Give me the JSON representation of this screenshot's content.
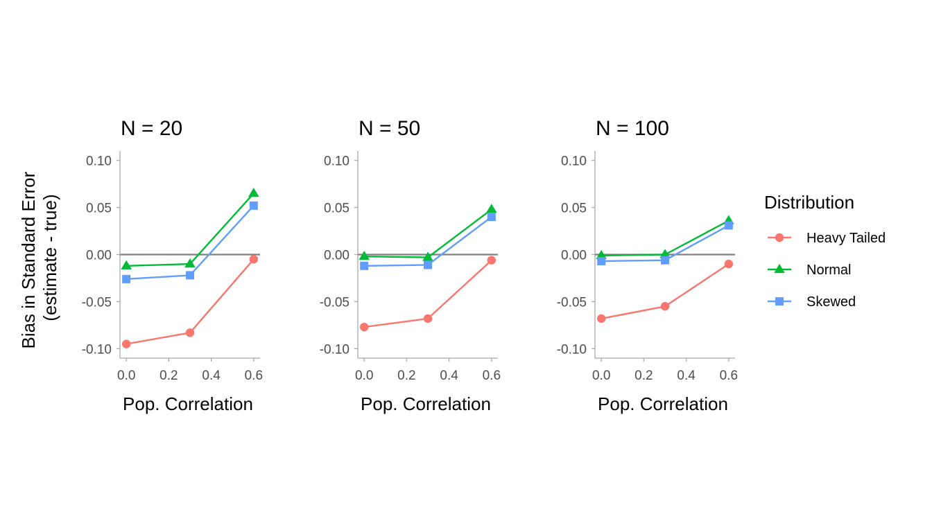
{
  "chart_data": {
    "type": "line",
    "ylabel_lines": [
      "Bias in Standard Error",
      "(estimate - true)"
    ],
    "xlabel": "Pop. Correlation",
    "xlim": [
      -0.03,
      0.63
    ],
    "ylim": [
      -0.11,
      0.11
    ],
    "x_ticks": [
      0.0,
      0.2,
      0.4,
      0.6
    ],
    "x_tick_labels": [
      "0.0",
      "0.2",
      "0.4",
      "0.6"
    ],
    "y_ticks": [
      -0.1,
      -0.05,
      0.0,
      0.05,
      0.1
    ],
    "y_tick_labels": [
      "-0.10",
      "-0.05",
      "0.00",
      "0.05",
      "0.10"
    ],
    "reference_line_y": 0,
    "grid": false,
    "legend": {
      "title": "Distribution",
      "placement": "right"
    },
    "series_styles": [
      {
        "name": "Heavy Tailed",
        "color": "#F8766D",
        "marker": "circle"
      },
      {
        "name": "Normal",
        "color": "#00BA38",
        "marker": "triangle"
      },
      {
        "name": "Skewed",
        "color": "#619CFF",
        "marker": "square"
      }
    ],
    "x": [
      0.0,
      0.3,
      0.6
    ],
    "panels": [
      {
        "title": "N = 20",
        "series": [
          {
            "name": "Heavy Tailed",
            "values": [
              -0.095,
              -0.083,
              -0.005
            ]
          },
          {
            "name": "Normal",
            "values": [
              -0.012,
              -0.01,
              0.065
            ]
          },
          {
            "name": "Skewed",
            "values": [
              -0.026,
              -0.022,
              0.052
            ]
          }
        ]
      },
      {
        "title": "N = 50",
        "series": [
          {
            "name": "Heavy Tailed",
            "values": [
              -0.077,
              -0.068,
              -0.006
            ]
          },
          {
            "name": "Normal",
            "values": [
              -0.002,
              -0.003,
              0.048
            ]
          },
          {
            "name": "Skewed",
            "values": [
              -0.012,
              -0.011,
              0.04
            ]
          }
        ]
      },
      {
        "title": "N = 100",
        "series": [
          {
            "name": "Heavy Tailed",
            "values": [
              -0.068,
              -0.055,
              -0.01
            ]
          },
          {
            "name": "Normal",
            "values": [
              -0.001,
              0.0,
              0.036
            ]
          },
          {
            "name": "Skewed",
            "values": [
              -0.007,
              -0.006,
              0.031
            ]
          }
        ]
      }
    ]
  }
}
